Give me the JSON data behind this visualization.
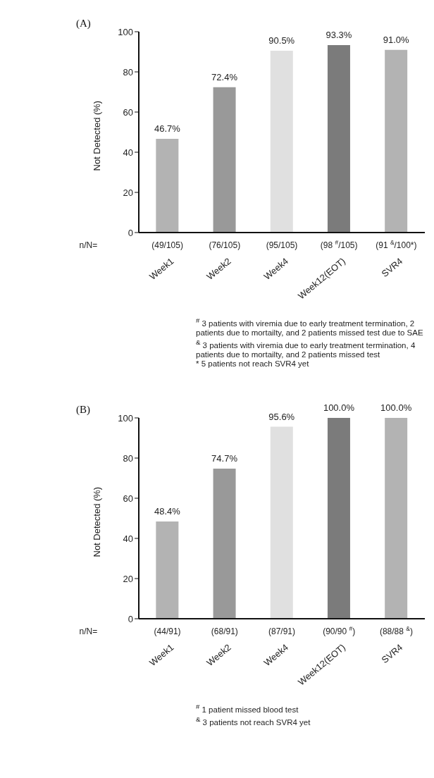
{
  "chart_data": [
    {
      "type": "bar",
      "title": "(A)",
      "ylabel": "Not Detected (%)",
      "categories": [
        "Week1",
        "Week2",
        "Week4",
        "Week12(EOT)",
        "SVR4"
      ],
      "values": [
        46.7,
        72.4,
        90.5,
        93.3,
        91.0
      ],
      "colors": [
        "#b3b3b3",
        "#999999",
        "#e0e0e0",
        "#7b7b7b",
        "#b3b3b3"
      ],
      "value_labels": [
        "46.7%",
        "72.4%",
        "90.5%",
        "93.3%",
        "91.0%"
      ],
      "ylim": [
        0,
        100
      ],
      "yticks": [
        0,
        20,
        40,
        60,
        80,
        100
      ],
      "annotations": [
        "n/N=",
        "(49/105)",
        "(76/105)",
        "(95/105)",
        "(98 $^{#}$/105)",
        "(91 $^{&}$/100*)",
        "$^{#}$ 3 patients with viremia due to early treatment termination, 2 patients due to mortailty, and 2 patients missed test due to SAE",
        "$^{&}$ 3 patients with viremia due to early treatment termination, 4 patients due to mortailty,  and 2 patients missed test",
        "* 5 patients not reach SVR4 yet"
      ]
    },
    {
      "type": "bar",
      "title": "(B)",
      "ylabel": "Not Detected (%)",
      "categories": [
        "Week1",
        "Week2",
        "Week4",
        "Week12(EOT)",
        "SVR4"
      ],
      "values": [
        48.4,
        74.7,
        95.6,
        100.0,
        100.0
      ],
      "colors": [
        "#b3b3b3",
        "#999999",
        "#e0e0e0",
        "#7b7b7b",
        "#b3b3b3"
      ],
      "value_labels": [
        "48.4%",
        "74.7%",
        "95.6%",
        "100.0%",
        "100.0%"
      ],
      "ylim": [
        0,
        100
      ],
      "yticks": [
        0,
        20,
        40,
        60,
        80,
        100
      ],
      "annotations": [
        "n/N=",
        "(44/91)",
        "(68/91)",
        "(87/91)",
        "(90/90 $^{#}$)",
        "(88/88 $^{&}$)",
        "$^{#}$ 1 patient missed blood test",
        "$^{&}$ 3 patients not reach SVR4 yet"
      ]
    }
  ]
}
